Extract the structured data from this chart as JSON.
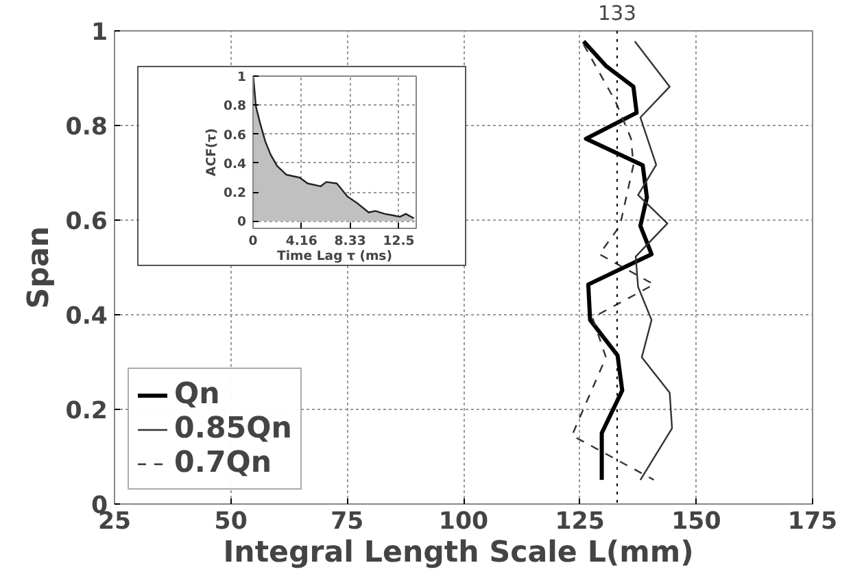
{
  "chart_data": [
    {
      "type": "line",
      "xlabel": "Integral Length Scale  L(mm)",
      "ylabel": "Span",
      "xlim": [
        25,
        175
      ],
      "ylim": [
        0,
        1
      ],
      "xticks": [
        25,
        50,
        75,
        100,
        125,
        150,
        175
      ],
      "yticks": [
        0,
        0.2,
        0.4,
        0.6,
        0.8,
        1
      ],
      "grid": true,
      "legend": "bottom left",
      "ref_lines": [
        {
          "axis": "x",
          "value": 133,
          "label": "133",
          "line_style": "dotted"
        }
      ],
      "series": [
        {
          "name": "Qn",
          "color": "#000000",
          "line_style": "solid",
          "values": [
            0.978,
            0.926,
            0.882,
            0.827,
            0.772,
            0.716,
            0.648,
            0.588,
            0.528,
            0.464,
            0.389,
            0.314,
            0.24,
            0.15,
            0.051
          ],
          "x": [
            125.8,
            130.6,
            136.5,
            137.2,
            126.3,
            138.5,
            139.4,
            138.0,
            140.4,
            126.8,
            127.2,
            133.1,
            134.1,
            129.7,
            129.7
          ]
        },
        {
          "name": "0.85Qn",
          "color": "#333333",
          "line_style": "solid",
          "values": [
            0.978,
            0.882,
            0.817,
            0.717,
            0.653,
            0.593,
            0.523,
            0.459,
            0.389,
            0.31,
            0.235,
            0.16,
            0.051
          ],
          "x": [
            136.8,
            144.3,
            138.0,
            141.4,
            137.5,
            143.8,
            137.0,
            137.5,
            140.4,
            138.3,
            144.3,
            144.8,
            138.0
          ]
        },
        {
          "name": "0.7Qn",
          "color": "#333333",
          "line_style": "dashed",
          "values": [
            0.971,
            0.852,
            0.772,
            0.716,
            0.588,
            0.528,
            0.464,
            0.394,
            0.31,
            0.145,
            0.051
          ],
          "x": [
            125.8,
            132.6,
            136.0,
            136.5,
            133.6,
            129.2,
            140.9,
            127.7,
            130.6,
            123.3,
            140.9
          ]
        }
      ]
    },
    {
      "type": "area",
      "xlabel": "Time Lag τ (ms)",
      "ylabel": "ACF(τ)",
      "xlim": [
        0,
        14
      ],
      "ylim": [
        -0.05,
        1
      ],
      "xticks": [
        0,
        4.16,
        8.33,
        12.5
      ],
      "yticks": [
        0,
        0.2,
        0.4,
        0.6,
        0.8,
        1
      ],
      "grid": true,
      "series": [
        {
          "color": "#c0c0c0",
          "x": [
            0.03,
            0.25,
            0.59,
            1.05,
            1.5,
            2.07,
            2.87,
            4.0,
            4.69,
            5.8,
            6.28,
            7.19,
            8.1,
            9.0,
            9.92,
            10.5,
            11.3,
            12.0,
            12.6,
            13.1,
            13.8
          ],
          "values": [
            0.99,
            0.79,
            0.68,
            0.55,
            0.46,
            0.38,
            0.32,
            0.3,
            0.26,
            0.24,
            0.27,
            0.26,
            0.17,
            0.12,
            0.06,
            0.07,
            0.05,
            0.04,
            0.03,
            0.05,
            0.02
          ]
        }
      ]
    }
  ]
}
